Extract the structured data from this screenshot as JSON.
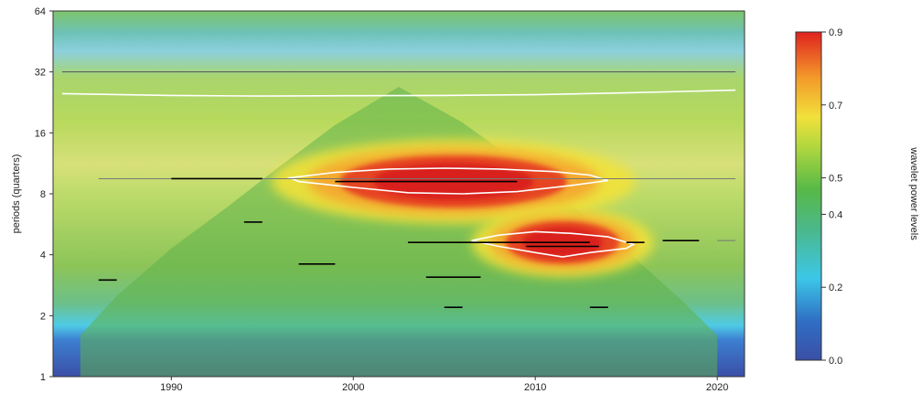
{
  "chart_data": {
    "type": "heatmap",
    "title": "",
    "xlabel": "",
    "ylabel": "periods (quarters)",
    "colorbar_label": "wavelet power levels",
    "x_range": [
      1983.5,
      2021.5
    ],
    "y_range": [
      1,
      64
    ],
    "y_scale": "log2",
    "x_ticks": [
      1990,
      2000,
      2010,
      2020
    ],
    "x_tick_labels": [
      "1990",
      "2000",
      "2010",
      "2020"
    ],
    "y_ticks": [
      1,
      2,
      4,
      8,
      16,
      32,
      64
    ],
    "y_tick_labels": [
      "1",
      "2",
      "4",
      "8",
      "16",
      "32",
      "64"
    ],
    "colorbar_range": [
      0,
      0.9
    ],
    "colorbar_ticks": [
      0.0,
      0.2,
      0.4,
      0.5,
      0.7,
      0.9
    ],
    "colorbar_tick_labels": [
      "0.0",
      "0.2",
      "0.4",
      "0.5",
      "0.7",
      "0.9"
    ],
    "colorscale": [
      "#3a4fa6",
      "#2f7fd0",
      "#3cc7e8",
      "#57b947",
      "#e6e23a",
      "#f39a2a",
      "#e0221f"
    ],
    "cone_of_influence": {
      "x": [
        1985.0,
        1987.0,
        1990.0,
        1993.0,
        1996.0,
        1999.0,
        2002.5,
        2006.0,
        2009.0,
        2012.0,
        2015.0,
        2018.0,
        2020.0
      ],
      "y": [
        1.6,
        2.5,
        4.3,
        6.8,
        11.0,
        17.5,
        27,
        18.0,
        11.5,
        7.0,
        4.2,
        2.4,
        1.6
      ]
    },
    "high_power_regions": [
      {
        "x_center": 2005.5,
        "y_center": 9.2,
        "x_width": 16.0,
        "log2_height": 0.55,
        "peak": 0.9
      },
      {
        "x_center": 2011.5,
        "y_center": 4.6,
        "x_width": 8.0,
        "log2_height": 0.45,
        "peak": 0.85
      }
    ],
    "significance_contours": [
      {
        "x": [
          1996.5,
          1999,
          2002,
          2005,
          2008,
          2011,
          2013,
          2014,
          2012,
          2009,
          2006,
          2003,
          2000,
          1997
        ],
        "y": [
          9.6,
          10.2,
          10.6,
          10.7,
          10.6,
          10.3,
          9.9,
          9.3,
          8.8,
          8.2,
          8.0,
          8.1,
          8.6,
          9.2
        ]
      },
      {
        "x": [
          2006.5,
          2008,
          2010,
          2012,
          2014,
          2015.4,
          2015,
          2013,
          2011.5,
          2010,
          2008
        ],
        "y": [
          4.7,
          5.0,
          5.2,
          5.1,
          4.9,
          4.5,
          4.3,
          4.1,
          3.9,
          4.1,
          4.4
        ]
      },
      {
        "x": [
          1984,
          1990,
          1995,
          2000,
          2005,
          2010,
          2015,
          2021
        ],
        "y": [
          25,
          24.5,
          24.3,
          24.4,
          24.5,
          24.7,
          25.2,
          26
        ]
      }
    ],
    "ridge_lines": [
      {
        "x": [
          1986.0,
          2021.0
        ],
        "y": [
          9.5,
          9.5
        ],
        "color": "#777777"
      },
      {
        "x": [
          1984.0,
          2021.0
        ],
        "y": [
          32.0,
          32.0
        ],
        "color": "#555555"
      },
      {
        "x": [
          1990.0,
          1995.0
        ],
        "y": [
          9.5,
          9.5
        ],
        "color": "#000000"
      },
      {
        "x": [
          1999.0,
          2009.0
        ],
        "y": [
          9.2,
          9.2
        ],
        "color": "#000000"
      },
      {
        "x": [
          2003.0,
          2013.0
        ],
        "y": [
          4.6,
          4.6
        ],
        "color": "#000000"
      },
      {
        "x": [
          2009.5,
          2013.5
        ],
        "y": [
          4.4,
          4.4
        ],
        "color": "#000000"
      },
      {
        "x": [
          2015.0,
          2016.0
        ],
        "y": [
          4.6,
          4.6
        ],
        "color": "#000000"
      },
      {
        "x": [
          2017.0,
          2019.0
        ],
        "y": [
          4.7,
          4.7
        ],
        "color": "#000000"
      },
      {
        "x": [
          2020.0,
          2021.0
        ],
        "y": [
          4.7,
          4.7
        ],
        "color": "#777777"
      },
      {
        "x": [
          1986.0,
          1987.0
        ],
        "y": [
          3.0,
          3.0
        ],
        "color": "#000000"
      },
      {
        "x": [
          1997.0,
          1999.0
        ],
        "y": [
          3.6,
          3.6
        ],
        "color": "#000000"
      },
      {
        "x": [
          1994.0,
          1995.0
        ],
        "y": [
          5.8,
          5.8
        ],
        "color": "#000000"
      },
      {
        "x": [
          2004.0,
          2007.0
        ],
        "y": [
          3.1,
          3.1
        ],
        "color": "#000000"
      },
      {
        "x": [
          2005.0,
          2006.0
        ],
        "y": [
          2.2,
          2.2
        ],
        "color": "#000000"
      },
      {
        "x": [
          2013.0,
          2014.0
        ],
        "y": [
          2.2,
          2.2
        ],
        "color": "#000000"
      }
    ]
  }
}
